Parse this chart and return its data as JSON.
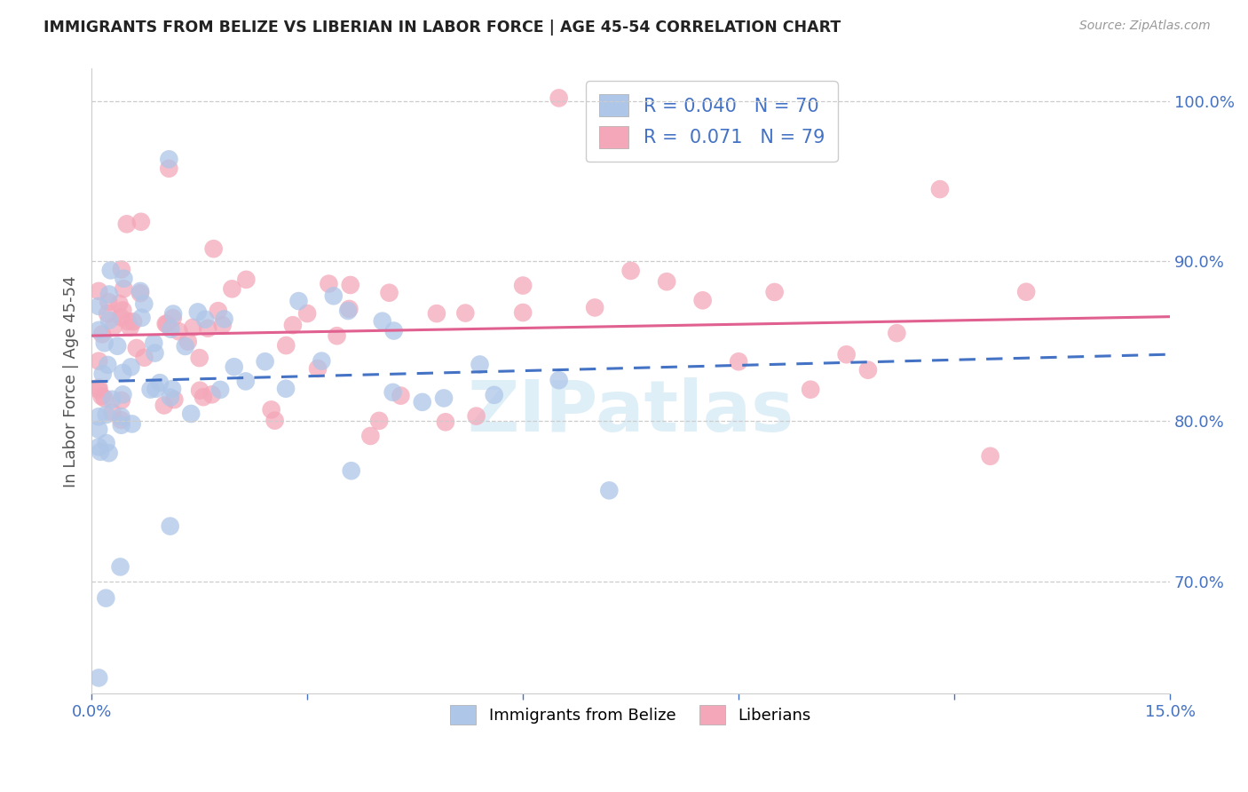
{
  "title": "IMMIGRANTS FROM BELIZE VS LIBERIAN IN LABOR FORCE | AGE 45-54 CORRELATION CHART",
  "source": "Source: ZipAtlas.com",
  "ylabel": "In Labor Force | Age 45-54",
  "xlim": [
    0.0,
    0.15
  ],
  "ylim": [
    0.63,
    1.02
  ],
  "xtick_positions": [
    0.0,
    0.03,
    0.06,
    0.09,
    0.12,
    0.15
  ],
  "xticklabels": [
    "0.0%",
    "",
    "",
    "",
    "",
    "15.0%"
  ],
  "yticks_right": [
    0.7,
    0.8,
    0.9,
    1.0
  ],
  "ytick_labels_right": [
    "70.0%",
    "80.0%",
    "90.0%",
    "100.0%"
  ],
  "belize_R": 0.04,
  "belize_N": 70,
  "liberian_R": 0.071,
  "liberian_N": 79,
  "belize_color": "#aec6e8",
  "liberian_color": "#f4a7b9",
  "belize_line_color": "#4472c4",
  "liberian_line_color": "#e06090",
  "background_color": "#ffffff",
  "watermark": "ZIPatlas",
  "legend_R_label_belize": "R = 0.040   N = 70",
  "legend_R_label_liberian": "R =  0.071   N = 79",
  "bottom_label_belize": "Immigrants from Belize",
  "bottom_label_liberian": "Liberians"
}
